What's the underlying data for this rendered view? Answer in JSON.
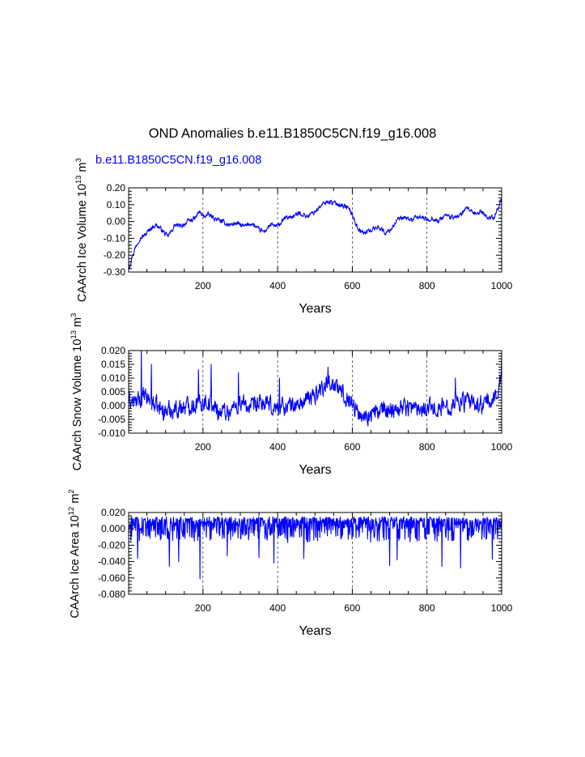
{
  "figure": {
    "title": "OND Anomalies b.e11.B1850C5CN.f19_g16.008",
    "series_label": "b.e11.B1850C5CN.f19_g16.008",
    "series_color": "#0000ff",
    "axis_color": "#000000"
  },
  "chart_data": [
    {
      "type": "line",
      "name": "ice-volume",
      "xlabel": "Years",
      "ylabel": "CAArch Ice Volume 10",
      "ylabel_exp": "13",
      "ylabel_unit": " m",
      "ylabel_unit_exp": "3",
      "xlim": [
        1,
        1000
      ],
      "ylim": [
        -0.3,
        0.2
      ],
      "xticks": [
        200,
        400,
        600,
        800,
        1000
      ],
      "yticks": [
        -0.3,
        -0.2,
        -0.1,
        0.0,
        0.1,
        0.2
      ],
      "ytick_labels": [
        "-0.30",
        "-0.20",
        "-0.10",
        "0.00",
        "0.10",
        "0.20"
      ],
      "x_grid": "dashed",
      "anchors": [
        [
          1,
          -0.24
        ],
        [
          3,
          -0.27
        ],
        [
          10,
          -0.21
        ],
        [
          20,
          -0.15
        ],
        [
          30,
          -0.1
        ],
        [
          45,
          -0.08
        ],
        [
          60,
          -0.04
        ],
        [
          75,
          -0.02
        ],
        [
          90,
          -0.05
        ],
        [
          105,
          -0.09
        ],
        [
          115,
          -0.06
        ],
        [
          125,
          -0.02
        ],
        [
          140,
          -0.03
        ],
        [
          160,
          0.0
        ],
        [
          180,
          0.02
        ],
        [
          190,
          0.06
        ],
        [
          200,
          0.03
        ],
        [
          215,
          0.04
        ],
        [
          230,
          0.02
        ],
        [
          250,
          0.0
        ],
        [
          270,
          -0.02
        ],
        [
          290,
          -0.01
        ],
        [
          310,
          -0.03
        ],
        [
          330,
          -0.01
        ],
        [
          350,
          -0.05
        ],
        [
          365,
          -0.06
        ],
        [
          380,
          -0.02
        ],
        [
          400,
          -0.03
        ],
        [
          420,
          0.02
        ],
        [
          440,
          0.03
        ],
        [
          460,
          0.05
        ],
        [
          480,
          0.03
        ],
        [
          500,
          0.06
        ],
        [
          520,
          0.1
        ],
        [
          535,
          0.12
        ],
        [
          550,
          0.11
        ],
        [
          570,
          0.1
        ],
        [
          590,
          0.08
        ],
        [
          600,
          0.04
        ],
        [
          615,
          -0.04
        ],
        [
          630,
          -0.07
        ],
        [
          650,
          -0.05
        ],
        [
          670,
          -0.03
        ],
        [
          690,
          -0.07
        ],
        [
          705,
          -0.04
        ],
        [
          720,
          0.01
        ],
        [
          740,
          0.02
        ],
        [
          760,
          0.01
        ],
        [
          780,
          0.03
        ],
        [
          800,
          0.01
        ],
        [
          815,
          0.02
        ],
        [
          830,
          0.0
        ],
        [
          850,
          0.04
        ],
        [
          870,
          0.02
        ],
        [
          890,
          0.04
        ],
        [
          910,
          0.08
        ],
        [
          925,
          0.04
        ],
        [
          945,
          0.06
        ],
        [
          965,
          0.02
        ],
        [
          980,
          0.03
        ],
        [
          990,
          0.08
        ],
        [
          1000,
          0.13
        ]
      ],
      "noise": 0.012,
      "spikes": []
    },
    {
      "type": "line",
      "name": "snow-volume",
      "xlabel": "Years",
      "ylabel": "CAArch Snow Volume 10",
      "ylabel_exp": "13",
      "ylabel_unit": " m",
      "ylabel_unit_exp": "3",
      "xlim": [
        1,
        1000
      ],
      "ylim": [
        -0.01,
        0.02
      ],
      "xticks": [
        200,
        400,
        600,
        800,
        1000
      ],
      "yticks": [
        -0.01,
        -0.005,
        0.0,
        0.005,
        0.01,
        0.015,
        0.02
      ],
      "ytick_labels": [
        "-0.010",
        "-0.005",
        "0.000",
        "0.005",
        "0.010",
        "0.015",
        "0.020"
      ],
      "x_grid": "dashed",
      "anchors": [
        [
          1,
          0.002
        ],
        [
          20,
          0.001
        ],
        [
          40,
          0.003
        ],
        [
          60,
          0.002
        ],
        [
          80,
          -0.001
        ],
        [
          100,
          -0.002
        ],
        [
          130,
          -0.001
        ],
        [
          160,
          0.0
        ],
        [
          190,
          0.001
        ],
        [
          210,
          0.002
        ],
        [
          240,
          -0.002
        ],
        [
          270,
          -0.002
        ],
        [
          300,
          0.001
        ],
        [
          330,
          -0.001
        ],
        [
          360,
          0.001
        ],
        [
          390,
          -0.001
        ],
        [
          420,
          0.0
        ],
        [
          450,
          0.0
        ],
        [
          480,
          0.002
        ],
        [
          500,
          0.004
        ],
        [
          520,
          0.007
        ],
        [
          540,
          0.009
        ],
        [
          560,
          0.006
        ],
        [
          580,
          0.004
        ],
        [
          600,
          0.001
        ],
        [
          620,
          -0.004
        ],
        [
          650,
          -0.003
        ],
        [
          680,
          -0.002
        ],
        [
          710,
          -0.001
        ],
        [
          740,
          0.0
        ],
        [
          770,
          -0.001
        ],
        [
          800,
          0.0
        ],
        [
          830,
          -0.001
        ],
        [
          860,
          0.0
        ],
        [
          880,
          0.002
        ],
        [
          910,
          0.001
        ],
        [
          940,
          0.0
        ],
        [
          960,
          0.001
        ],
        [
          980,
          0.002
        ],
        [
          1000,
          0.011
        ]
      ],
      "noise": 0.0028,
      "spikes": [
        [
          35,
          0.02
        ],
        [
          62,
          0.015
        ],
        [
          188,
          0.013
        ],
        [
          222,
          0.015
        ],
        [
          295,
          0.012
        ],
        [
          405,
          0.01
        ],
        [
          535,
          0.014
        ],
        [
          876,
          0.01
        ],
        [
          1000,
          0.018
        ]
      ]
    },
    {
      "type": "line",
      "name": "ice-area",
      "xlabel": "Years",
      "ylabel": "CAArch Ice Area 10",
      "ylabel_exp": "12",
      "ylabel_unit": " m",
      "ylabel_unit_exp": "2",
      "xlim": [
        1,
        1000
      ],
      "ylim": [
        -0.08,
        0.02
      ],
      "xticks": [
        200,
        400,
        600,
        800,
        1000
      ],
      "yticks": [
        -0.08,
        -0.06,
        -0.04,
        -0.02,
        0.0,
        0.02
      ],
      "ytick_labels": [
        "-0.080",
        "-0.060",
        "-0.040",
        "-0.020",
        "0.000",
        "0.020"
      ],
      "x_grid": "dashed",
      "anchors": [
        [
          1,
          0.005
        ],
        [
          1000,
          0.005
        ]
      ],
      "noise": 0.01,
      "spikes": [
        [
          25,
          -0.036
        ],
        [
          110,
          -0.046
        ],
        [
          135,
          -0.04
        ],
        [
          192,
          -0.061
        ],
        [
          265,
          -0.033
        ],
        [
          350,
          -0.035
        ],
        [
          390,
          -0.042
        ],
        [
          470,
          -0.036
        ],
        [
          700,
          -0.045
        ],
        [
          720,
          -0.038
        ],
        [
          840,
          -0.046
        ],
        [
          890,
          -0.048
        ],
        [
          975,
          -0.037
        ]
      ]
    }
  ]
}
